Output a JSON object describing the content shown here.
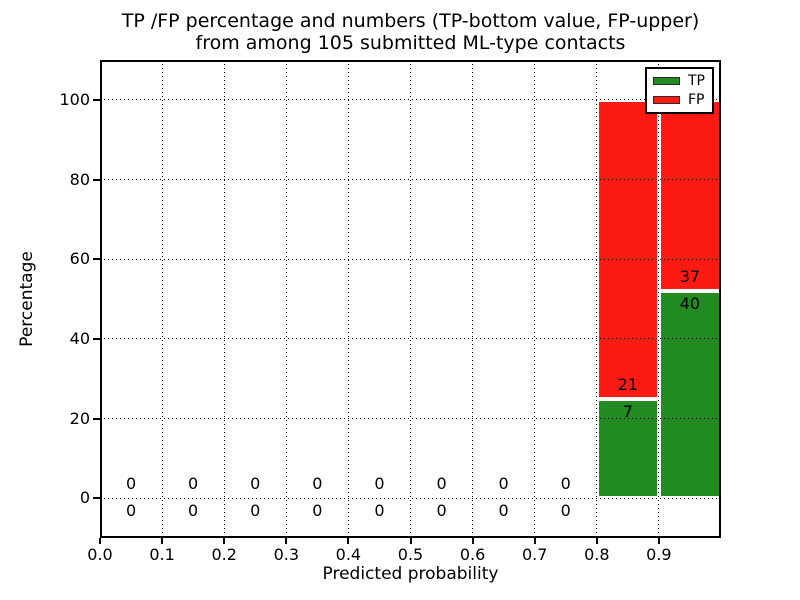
{
  "title": {
    "line1": "TP /FP percentage and numbers (TP-bottom value, FP-upper)",
    "line2": "from among 105 submitted ML-type contacts"
  },
  "x_axis_label": "Predicted probability",
  "y_axis_label": "Percentage",
  "legend": {
    "position": "upper right",
    "items": [
      {
        "label": "TP",
        "color": "#228B22"
      },
      {
        "label": "FP",
        "color": "#fb1b13"
      }
    ]
  },
  "colors": {
    "tp": "#228B22",
    "fp": "#fb1b13",
    "grid": "#000000",
    "bar_edge": "#ffffff",
    "background": "#ffffff"
  },
  "chart_data": {
    "type": "bar",
    "stacked": true,
    "title": "TP /FP percentage and numbers (TP-bottom value, FP-upper) from among 105 submitted ML-type contacts",
    "xlabel": "Predicted probability",
    "ylabel": "Percentage",
    "xlim": [
      0.0,
      1.0
    ],
    "ylim": [
      -10,
      110
    ],
    "grid": true,
    "legend_position": "upper right",
    "total_contacts": 105,
    "bin_width": 0.1,
    "x_ticks": [
      0.0,
      0.1,
      0.2,
      0.3,
      0.4,
      0.5,
      0.6,
      0.7,
      0.8,
      0.9
    ],
    "x_tick_labels": [
      "0.0",
      "0.1",
      "0.2",
      "0.3",
      "0.4",
      "0.5",
      "0.6",
      "0.7",
      "0.8",
      "0.9"
    ],
    "y_ticks": [
      0,
      20,
      40,
      60,
      80,
      100
    ],
    "y_tick_labels": [
      "0",
      "20",
      "40",
      "60",
      "80",
      "100"
    ],
    "bin_centers": [
      0.05,
      0.15,
      0.25,
      0.35,
      0.45,
      0.55,
      0.65,
      0.75,
      0.85,
      0.95
    ],
    "series": [
      {
        "name": "TP",
        "counts": [
          0,
          0,
          0,
          0,
          0,
          0,
          0,
          0,
          7,
          40
        ],
        "pct": [
          0,
          0,
          0,
          0,
          0,
          0,
          0,
          0,
          25.0,
          51.95
        ]
      },
      {
        "name": "FP",
        "counts": [
          0,
          0,
          0,
          0,
          0,
          0,
          0,
          0,
          21,
          37
        ],
        "pct": [
          0,
          0,
          0,
          0,
          0,
          0,
          0,
          0,
          75.0,
          48.05
        ]
      }
    ]
  }
}
